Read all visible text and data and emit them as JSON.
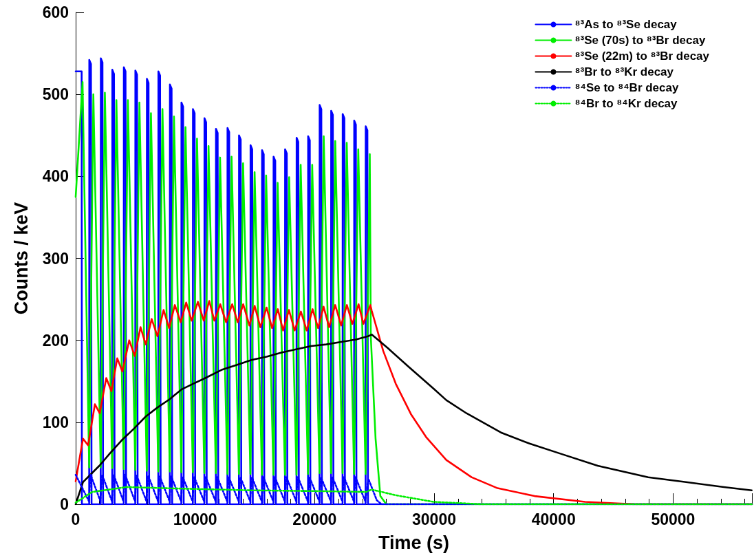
{
  "chart_data": {
    "type": "line",
    "xlabel": "Time (s)",
    "ylabel": "Counts / keV",
    "xlim": [
      0,
      56600
    ],
    "xticks": [
      0,
      10000,
      20000,
      30000,
      40000,
      50000
    ],
    "ylim": [
      0,
      600
    ],
    "yticks": [
      0,
      100,
      200,
      300,
      400,
      500,
      600
    ],
    "legend": "top right",
    "marker": "none",
    "series": [
      {
        "name": "⁸³As to ⁸³Se decay",
        "color": "#0000ff",
        "line_style": "solid",
        "x": [
          0,
          500,
          520,
          1130,
          1140,
          1280,
          1330,
          2094,
          2104,
          2244,
          2294,
          3058,
          3068,
          3208,
          3258,
          4022,
          4032,
          4172,
          4222,
          4986,
          4996,
          5136,
          5186,
          5950,
          5960,
          6100,
          6150,
          6914,
          6924,
          7064,
          7114,
          7878,
          7888,
          8028,
          8078,
          8842,
          8852,
          8992,
          9042,
          9806,
          9816,
          9956,
          10006,
          10770,
          10780,
          10920,
          10970,
          11734,
          11744,
          11884,
          11934,
          12698,
          12708,
          12848,
          12898,
          13662,
          13672,
          13812,
          13862,
          14626,
          14636,
          14776,
          14826,
          15590,
          15600,
          15740,
          15790,
          16554,
          16564,
          16704,
          16754,
          17518,
          17528,
          17668,
          17718,
          18482,
          18492,
          18632,
          18682,
          19446,
          19456,
          19596,
          19646,
          20410,
          20420,
          20560,
          20610,
          21374,
          21384,
          21524,
          21574,
          22338,
          22348,
          22488,
          22538,
          23302,
          23312,
          23452,
          23502,
          24266,
          24276,
          24416,
          24466,
          56600
        ],
        "values": [
          528,
          528,
          0,
          0,
          542,
          537,
          0,
          0,
          544,
          539,
          0,
          0,
          530,
          525,
          0,
          0,
          533,
          528,
          0,
          0,
          529,
          524,
          0,
          0,
          519,
          514,
          0,
          0,
          528,
          523,
          0,
          0,
          512,
          507,
          0,
          0,
          490,
          485,
          0,
          0,
          482,
          477,
          0,
          0,
          471,
          466,
          0,
          0,
          458,
          453,
          0,
          0,
          459,
          454,
          0,
          0,
          450,
          445,
          0,
          0,
          438,
          433,
          0,
          0,
          432,
          427,
          0,
          0,
          424,
          419,
          0,
          0,
          433,
          428,
          0,
          0,
          447,
          442,
          0,
          0,
          449,
          444,
          0,
          0,
          487,
          482,
          0,
          0,
          480,
          475,
          0,
          0,
          476,
          471,
          0,
          0,
          468,
          463,
          0,
          0,
          461,
          456,
          0,
          0
        ]
      },
      {
        "name": "⁸³Se (70s) to ⁸³Br decay",
        "color": "#00ee00",
        "line_style": "solid",
        "x": [
          0,
          575,
          1130,
          1480,
          2094,
          2444,
          3058,
          3408,
          4022,
          4372,
          4986,
          5336,
          5950,
          6300,
          6914,
          7264,
          7878,
          8228,
          8842,
          9192,
          9806,
          10156,
          10770,
          11120,
          11734,
          12084,
          12698,
          13048,
          13662,
          14012,
          14626,
          14976,
          15590,
          15940,
          16554,
          16904,
          17518,
          17868,
          18482,
          18832,
          19446,
          19796,
          20410,
          20760,
          21374,
          21724,
          22338,
          22688,
          23302,
          23652,
          24266,
          24616,
          24700,
          25100,
          25500,
          26000,
          56600
        ],
        "values": [
          375,
          515,
          45,
          500,
          45,
          502,
          44,
          493,
          43,
          493,
          42,
          490,
          41,
          477,
          40,
          482,
          40,
          473,
          39,
          460,
          39,
          446,
          38,
          437,
          38,
          423,
          37,
          424,
          37,
          416,
          37,
          405,
          36,
          401,
          36,
          392,
          36,
          399,
          36,
          414,
          37,
          414,
          38,
          449,
          38,
          443,
          38,
          441,
          37,
          433,
          37,
          427,
          205,
          80,
          10,
          0,
          0
        ]
      },
      {
        "name": "⁸³Se (22m) to ⁸³Br decay",
        "color": "#ff0000",
        "line_style": "solid",
        "x": [
          0,
          610,
          1040,
          1610,
          2010,
          2560,
          2990,
          3480,
          3910,
          4480,
          4940,
          5430,
          5860,
          6360,
          6840,
          7360,
          7820,
          8300,
          8790,
          9250,
          9710,
          10230,
          10720,
          11180,
          11610,
          12100,
          12590,
          13100,
          13560,
          14020,
          14540,
          14980,
          15460,
          15980,
          16440,
          16920,
          17360,
          17850,
          18330,
          18850,
          19340,
          19830,
          20290,
          20750,
          21210,
          21720,
          22220,
          22700,
          23160,
          23680,
          24080,
          24660,
          24780,
          25740,
          26790,
          28060,
          29330,
          31020,
          33130,
          35240,
          38410,
          42640,
          46860,
          56600
        ],
        "values": [
          28,
          80,
          72,
          122,
          111,
          154,
          138,
          178,
          162,
          200,
          181,
          216,
          195,
          226,
          205,
          237,
          215,
          243,
          222,
          246,
          224,
          247,
          224,
          248,
          224,
          244,
          222,
          244,
          222,
          244,
          218,
          242,
          216,
          240,
          215,
          238,
          212,
          237,
          212,
          235,
          212,
          238,
          215,
          241,
          216,
          243,
          218,
          243,
          220,
          244,
          220,
          243,
          236,
          187,
          147,
          110,
          82,
          54,
          33,
          20,
          10,
          3,
          0,
          0
        ]
      },
      {
        "name": "⁸³Br to ⁸³Kr decay",
        "color": "#000000",
        "line_style": "solid",
        "x": [
          0,
          610,
          1360,
          1980,
          2860,
          3850,
          4860,
          5860,
          6840,
          7850,
          8850,
          9830,
          10850,
          12220,
          13480,
          14710,
          15980,
          17220,
          18450,
          19710,
          20980,
          22220,
          23460,
          24470,
          24780,
          26160,
          27840,
          29960,
          31020,
          32710,
          35670,
          37990,
          40520,
          43690,
          47920,
          51090,
          54250,
          56580
        ],
        "values": [
          0,
          27,
          38,
          47,
          62,
          78,
          92,
          107,
          118,
          128,
          140,
          147,
          154,
          164,
          170,
          176,
          180,
          185,
          189,
          193,
          195,
          198,
          201,
          205,
          207,
          190,
          168,
          141,
          127,
          111,
          87,
          74,
          62,
          47,
          33,
          27,
          21,
          17
        ]
      },
      {
        "name": "⁸⁴Se to ⁸⁴Br decay",
        "color": "#0000ff",
        "line_style": "dotted",
        "x": [
          0,
          1100,
          1250,
          2064,
          2214,
          3028,
          3178,
          3992,
          4142,
          4956,
          5106,
          5920,
          6070,
          6884,
          7034,
          7848,
          7998,
          8812,
          8962,
          9776,
          9926,
          10740,
          10890,
          11704,
          11854,
          12668,
          12818,
          13632,
          13782,
          14596,
          14746,
          15560,
          15710,
          16524,
          16674,
          17488,
          17638,
          18452,
          18602,
          19416,
          19566,
          20380,
          20530,
          21344,
          21494,
          22308,
          22458,
          23272,
          23422,
          24236,
          24500,
          25200,
          25600,
          56600
        ],
        "values": [
          36,
          4,
          36,
          4,
          36,
          4,
          36,
          4,
          36,
          4,
          35,
          4,
          35,
          4,
          34,
          4,
          34,
          4,
          33,
          4,
          33,
          4,
          33,
          4,
          33,
          4,
          33,
          4,
          33,
          4,
          33,
          4,
          33,
          4,
          33,
          4,
          33,
          4,
          33,
          4,
          33,
          4,
          33,
          4,
          33,
          4,
          33,
          4,
          33,
          4,
          31,
          5,
          0,
          0
        ]
      },
      {
        "name": "⁸⁴Br to ⁸⁴Kr decay",
        "color": "#00ee00",
        "line_style": "dotted",
        "x": [
          0,
          1380,
          4250,
          9080,
          14830,
          20570,
          24300,
          24770,
          26790,
          29940,
          34000,
          56600
        ],
        "values": [
          2,
          15,
          21,
          19,
          17,
          16,
          15,
          18,
          11,
          3,
          0,
          0
        ]
      }
    ]
  }
}
